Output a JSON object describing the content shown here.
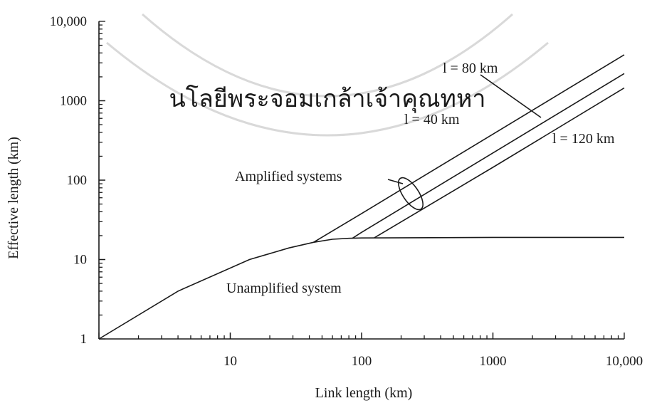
{
  "chart_data": {
    "type": "line",
    "xlabel": "Link length (km)",
    "ylabel": "Effective length (km)",
    "x_scale": "log",
    "y_scale": "log",
    "xlim": [
      1,
      10000
    ],
    "ylim": [
      1,
      10000
    ],
    "x_ticks": [
      "10",
      "100",
      "1000",
      "10,000"
    ],
    "y_ticks": [
      "1",
      "10",
      "100",
      "1000",
      "10,000"
    ],
    "grid": false,
    "series": [
      {
        "name": "Unamplified system",
        "x": [
          1,
          4,
          14,
          28,
          43,
          60,
          80,
          100,
          1000,
          10000
        ],
        "y": [
          1,
          4,
          10,
          14,
          16.5,
          18,
          18.5,
          18.7,
          19,
          19
        ]
      },
      {
        "name": "l = 40 km",
        "x": [
          43,
          100,
          1000,
          10000
        ],
        "y": [
          16.5,
          38,
          380,
          3800
        ]
      },
      {
        "name": "l = 80 km",
        "x": [
          85,
          100,
          1000,
          10000
        ],
        "y": [
          18.5,
          22,
          220,
          2200
        ]
      },
      {
        "name": "l = 120 km",
        "x": [
          125,
          1000,
          10000
        ],
        "y": [
          18.8,
          145,
          1450
        ]
      }
    ],
    "annotations": {
      "unamplified": "Unamplified system",
      "amplified": "Amplified systems",
      "l80": "l = 80 km",
      "l40": "l = 40 km",
      "l120": "l = 120 km"
    }
  },
  "watermark": {
    "text": "นโลยีพระจอมเกล้าเจ้าคุณทหา"
  }
}
